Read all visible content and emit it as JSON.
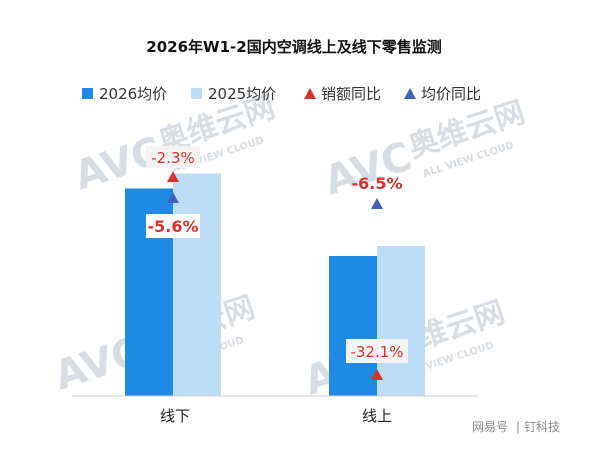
{
  "chart_data": {
    "type": "bar",
    "title": "2026年W1-2国内空调线上及线下零售监测",
    "categories": [
      "线下",
      "线上"
    ],
    "series": [
      {
        "name": "2026均价",
        "values": [
          null,
          null
        ],
        "color": "#1f8ae6"
      },
      {
        "name": "2025均价",
        "values": [
          null,
          null
        ],
        "color": "#bcdcf8"
      }
    ],
    "relative_heights_note_free": true,
    "bar_heights": {
      "2026均价": [
        0.83,
        0.56
      ],
      "2025均价": [
        0.89,
        0.6
      ]
    },
    "indicators": [
      {
        "name": "销额同比",
        "marker": "up-triangle",
        "color": "#d9312b",
        "values": [
          "-2.3%",
          "-32.1%"
        ]
      },
      {
        "name": "均价同比",
        "marker": "up-triangle",
        "color": "#3f64b5",
        "values": [
          "-5.6%",
          "-6.5%"
        ]
      }
    ],
    "legend_position": "top",
    "grid": false
  },
  "watermark": {
    "brand": "AVC",
    "cn": "奥维云网",
    "en": "ALL VIEW CLOUD"
  },
  "credit": {
    "source": "网易号",
    "sep": "|",
    "author": "钉科技"
  }
}
